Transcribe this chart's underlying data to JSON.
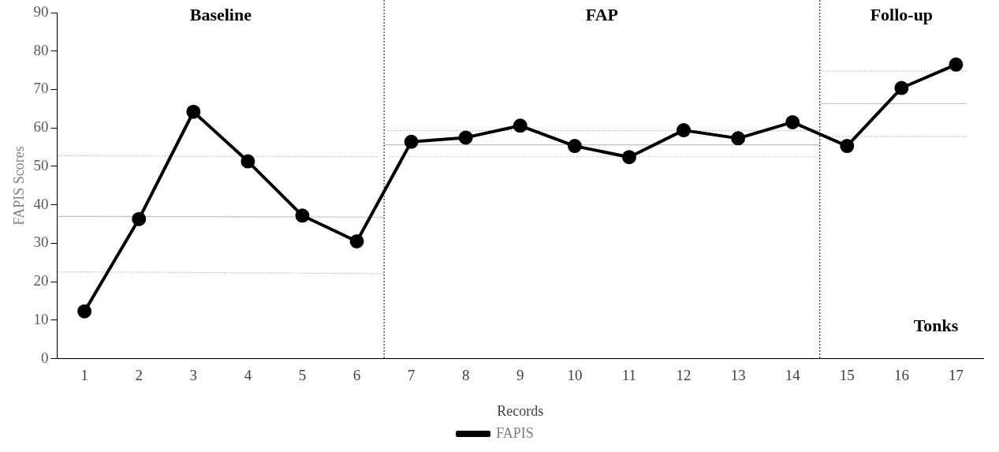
{
  "chart_data": {
    "type": "line",
    "xlabel": "Records",
    "ylabel": "FAPIS Scores",
    "x": [
      1,
      2,
      3,
      4,
      5,
      6,
      7,
      8,
      9,
      10,
      11,
      12,
      13,
      14,
      15,
      16,
      17
    ],
    "series": [
      {
        "name": "FAPIS",
        "color": "#000000",
        "values": [
          12.3,
          36.3,
          64.2,
          51.3,
          37.2,
          30.5,
          56.4,
          57.5,
          60.6,
          55.3,
          52.4,
          59.4,
          57.3,
          61.5,
          55.3,
          70.4,
          76.5
        ],
        "marker": "circle",
        "line_style": "solid"
      },
      {
        "color": "#c0c0c0",
        "x": [
          0.5,
          6.4
        ],
        "values": [
          52.8,
          52.5
        ],
        "marker": "none",
        "line_style": "dotted"
      },
      {
        "color": "#c0c0c0",
        "x": [
          0.5,
          6.5
        ],
        "values": [
          37.0,
          36.8
        ],
        "marker": "none",
        "line_style": "solid"
      },
      {
        "color": "#c0c0c0",
        "x": [
          0.5,
          6.5
        ],
        "values": [
          22.6,
          22.1
        ],
        "marker": "none",
        "line_style": "dotted"
      },
      {
        "color": "#c0c0c0",
        "x": [
          6.5,
          14.5
        ],
        "values": [
          59.3,
          59.3
        ],
        "marker": "none",
        "line_style": "dotted"
      },
      {
        "color": "#c0c0c0",
        "x": [
          6.5,
          14.5
        ],
        "values": [
          55.6,
          55.6
        ],
        "marker": "none",
        "line_style": "solid"
      },
      {
        "color": "#c0c0c0",
        "x": [
          6.6,
          14.5
        ],
        "values": [
          52.5,
          52.5
        ],
        "marker": "none",
        "line_style": "dotted"
      },
      {
        "color": "#c0c0c0",
        "x": [
          14.5,
          17.2
        ],
        "values": [
          74.8,
          74.8
        ],
        "marker": "none",
        "line_style": "dotted"
      },
      {
        "color": "#c0c0c0",
        "x": [
          14.5,
          17.2
        ],
        "values": [
          66.3,
          66.3
        ],
        "marker": "none",
        "line_style": "solid"
      },
      {
        "color": "#c0c0c0",
        "x": [
          14.5,
          17.2
        ],
        "values": [
          57.8,
          57.8
        ],
        "marker": "none",
        "line_style": "dotted"
      }
    ],
    "xlim": [
      0.5,
      17.5
    ],
    "xticks": [
      1,
      2,
      3,
      4,
      5,
      6,
      7,
      8,
      9,
      10,
      11,
      12,
      13,
      14,
      15,
      16,
      17
    ],
    "ylim": [
      0,
      90
    ],
    "yticks": [
      0,
      10,
      20,
      30,
      40,
      50,
      60,
      70,
      80,
      90
    ],
    "ref_lines": [
      {
        "axis": "x",
        "value": 6.5,
        "color": "#000000",
        "line_style": "dotted"
      },
      {
        "axis": "x",
        "value": 14.5,
        "color": "#000000",
        "line_style": "dotted"
      }
    ],
    "annotations": [
      "Baseline",
      "FAP",
      "Follo-up",
      "Tonks"
    ],
    "grid": false,
    "legend": "bottom"
  }
}
